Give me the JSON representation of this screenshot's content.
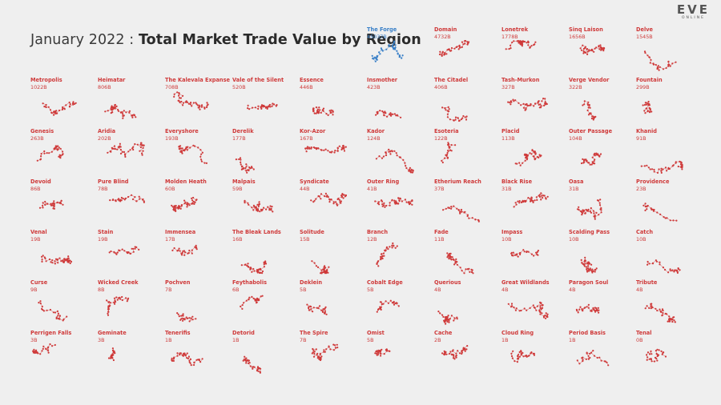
{
  "header": {
    "title_prefix": "January 2022 : ",
    "title_main": "Total Market Trade Value by Region"
  },
  "logo": {
    "main": "EVE",
    "sub": "ONLINE"
  },
  "colors": {
    "highlight": "#3a80c8",
    "normal": "#cf3a3a",
    "background": "#efefef"
  },
  "chart_data": {
    "type": "small-multiples",
    "series": [
      {
        "name": "The Forge",
        "value": "45037B"
      },
      {
        "name": "Domain",
        "value": "4732B"
      },
      {
        "name": "Lonetrek",
        "value": "1778B"
      },
      {
        "name": "Sinq Laison",
        "value": "1656B"
      },
      {
        "name": "Delve",
        "value": "1545B"
      },
      {
        "name": "Metropolis",
        "value": "1022B"
      },
      {
        "name": "Heimatar",
        "value": "806B"
      },
      {
        "name": "The Kalevala Expanse",
        "value": "708B"
      },
      {
        "name": "Vale of the Silent",
        "value": "520B"
      },
      {
        "name": "Essence",
        "value": "446B"
      },
      {
        "name": "Insmother",
        "value": "423B"
      },
      {
        "name": "The Citadel",
        "value": "406B"
      },
      {
        "name": "Tash-Murkon",
        "value": "327B"
      },
      {
        "name": "Verge Vendor",
        "value": "322B"
      },
      {
        "name": "Fountain",
        "value": "299B"
      },
      {
        "name": "Genesis",
        "value": "263B"
      },
      {
        "name": "Aridia",
        "value": "202B"
      },
      {
        "name": "Everyshore",
        "value": "193B"
      },
      {
        "name": "Derelik",
        "value": "177B"
      },
      {
        "name": "Kor-Azor",
        "value": "167B"
      },
      {
        "name": "Kador",
        "value": "124B"
      },
      {
        "name": "Esoteria",
        "value": "122B"
      },
      {
        "name": "Placid",
        "value": "113B"
      },
      {
        "name": "Outer Passage",
        "value": "104B"
      },
      {
        "name": "Khanid",
        "value": "91B"
      },
      {
        "name": "Devoid",
        "value": "86B"
      },
      {
        "name": "Pure Blind",
        "value": "78B"
      },
      {
        "name": "Molden Heath",
        "value": "60B"
      },
      {
        "name": "Malpais",
        "value": "59B"
      },
      {
        "name": "Syndicate",
        "value": "44B"
      },
      {
        "name": "Outer Ring",
        "value": "41B"
      },
      {
        "name": "Etherium Reach",
        "value": "37B"
      },
      {
        "name": "Black Rise",
        "value": "31B"
      },
      {
        "name": "Oasa",
        "value": "31B"
      },
      {
        "name": "Providence",
        "value": "23B"
      },
      {
        "name": "Venal",
        "value": "19B"
      },
      {
        "name": "Stain",
        "value": "19B"
      },
      {
        "name": "Immensea",
        "value": "17B"
      },
      {
        "name": "The Bleak Lands",
        "value": "16B"
      },
      {
        "name": "Solitude",
        "value": "15B"
      },
      {
        "name": "Branch",
        "value": "12B"
      },
      {
        "name": "Fade",
        "value": "11B"
      },
      {
        "name": "Impass",
        "value": "10B"
      },
      {
        "name": "Scalding Pass",
        "value": "10B"
      },
      {
        "name": "Catch",
        "value": "10B"
      },
      {
        "name": "Curse",
        "value": "9B"
      },
      {
        "name": "Wicked Creek",
        "value": "8B"
      },
      {
        "name": "Pochven",
        "value": "7B"
      },
      {
        "name": "Feythabolis",
        "value": "6B"
      },
      {
        "name": "Deklein",
        "value": "5B"
      },
      {
        "name": "Cobalt Edge",
        "value": "5B"
      },
      {
        "name": "Querious",
        "value": "4B"
      },
      {
        "name": "Great Wildlands",
        "value": "4B"
      },
      {
        "name": "Paragon Soul",
        "value": "4B"
      },
      {
        "name": "Tribute",
        "value": "4B"
      },
      {
        "name": "Perrigen Falls",
        "value": "3B"
      },
      {
        "name": "Geminate",
        "value": "3B"
      },
      {
        "name": "Tenerifis",
        "value": "1B"
      },
      {
        "name": "Detorid",
        "value": "1B"
      },
      {
        "name": "The Spire",
        "value": "7B"
      },
      {
        "name": "Omist",
        "value": "5B"
      },
      {
        "name": "Cache",
        "value": "2B"
      },
      {
        "name": "Cloud Ring",
        "value": "1B"
      },
      {
        "name": "Period Basis",
        "value": "1B"
      },
      {
        "name": "Tenal",
        "value": "0B"
      }
    ]
  }
}
